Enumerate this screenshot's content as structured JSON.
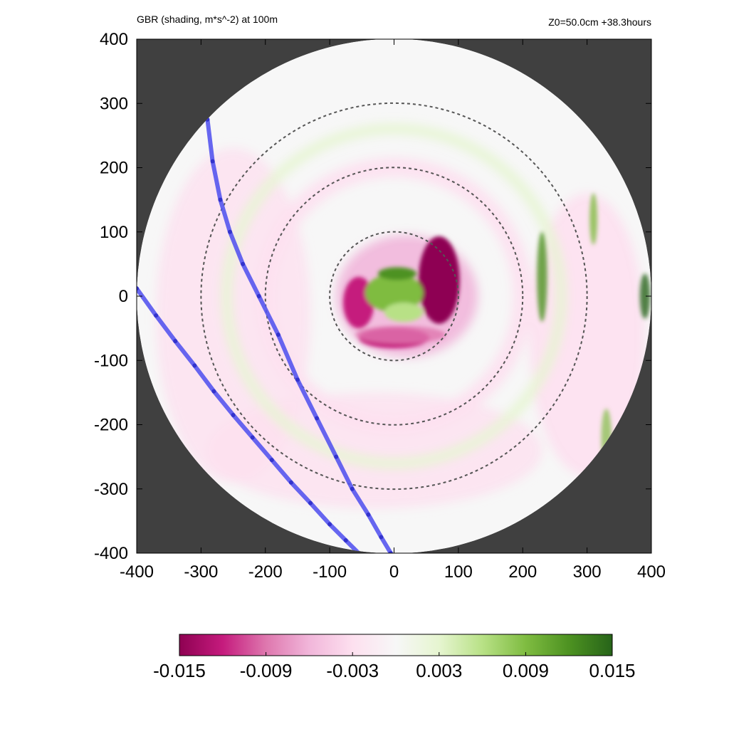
{
  "header": {
    "title": "GBR (shading, m*s^-2) at 100m",
    "info": "Z0=50.0cm  +38.3hours"
  },
  "chart_data": {
    "type": "heatmap",
    "title": "GBR (shading, m*s^-2) at 100m",
    "subtitle": "Z0=50.0cm  +38.3hours",
    "xlabel": "",
    "ylabel": "",
    "xlim": [
      -400,
      400
    ],
    "ylim": [
      -400,
      400
    ],
    "x_ticks": [
      "-400",
      "-300",
      "-200",
      "-100",
      "0",
      "100",
      "200",
      "300",
      "400"
    ],
    "y_ticks": [
      "400",
      "300",
      "200",
      "100",
      "0",
      "-100",
      "-200",
      "-300",
      "-400"
    ],
    "domain_radius": 400,
    "range_rings": [
      100,
      200,
      300
    ],
    "colorbar": {
      "min": -0.015,
      "max": 0.015,
      "tick_labels": [
        "-0.015",
        "-0.009",
        "-0.003",
        "0.003",
        "0.009",
        "0.015"
      ],
      "colors": [
        "#8e0152",
        "#c51b7d",
        "#de77ae",
        "#f1b6da",
        "#fde0ef",
        "#f7f7f7",
        "#e6f5d0",
        "#b8e186",
        "#7fbc41",
        "#4d9221",
        "#276419"
      ]
    },
    "background_color": "#404040",
    "track_color": "#5555ee",
    "tracks": [
      {
        "x": [
          -290,
          -282,
          -270,
          -255,
          -235,
          -210,
          -180,
          -150,
          -120,
          -90,
          -65,
          -40,
          -20,
          -5
        ],
        "y": [
          275,
          210,
          150,
          100,
          50,
          0,
          -60,
          -130,
          -190,
          -250,
          -300,
          -340,
          -375,
          -400
        ]
      },
      {
        "x": [
          -400,
          -370,
          -340,
          -310,
          -280,
          -250,
          -220,
          -190,
          -160,
          -130,
          -100,
          -75,
          -55
        ],
        "y": [
          12,
          -30,
          -70,
          -108,
          -148,
          -185,
          -220,
          -255,
          -290,
          -322,
          -355,
          -380,
          -400
        ]
      }
    ]
  }
}
